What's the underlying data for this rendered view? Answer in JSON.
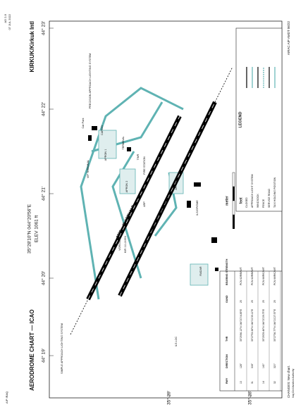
{
  "header": {
    "left": "AIP IRAQ",
    "right_1": "AD 2-9",
    "right_2": "07 JUL 2022"
  },
  "title": "AERODROME CHART — ICAO",
  "coords": "35°28'10\"N 044°20'56\"E",
  "elevation": "ELEV 1061 ft",
  "aerodrome": "KIRKUK/Kirkuk Intl",
  "longitudes": [
    "44° 19'",
    "44° 20'",
    "44° 21'",
    "44° 22'",
    "44° 23'"
  ],
  "latitudes": [
    "35° 29'",
    "35° 28'"
  ],
  "runways": [
    "2298 x 45 ASPHALT",
    "2998 x 45 CONCRETE"
  ],
  "labels": [
    "APRON 1",
    "APRON 2",
    "APRON",
    "VIP TERMINAL",
    "TERMINAL",
    "Car Park",
    "CARGO",
    "FIRE STATION",
    "TWR",
    "RADAR",
    "ARP",
    "VOR/DME",
    "KIR 111.2/49X",
    "ILS/GP/DME",
    "ILS LOC",
    "SIMPLE APPROACH LIGHTING SYSTEM",
    "PRECISION APPROACH LIGHTING SYSTEM"
  ],
  "table": {
    "headers": [
      "RWY",
      "DIRECTION",
      "THR",
      "GUND",
      "BEARING STRENGTH"
    ],
    "rows": [
      [
        "13",
        "128°",
        "35°29'46.12\"N 044°20'04.89\"E",
        "25",
        "PCN 62/R/B/W/T"
      ],
      [
        "31",
        "308°",
        "35°27'53.38\"N 044°21'35.12\"E",
        "25",
        "PCN 62/R/B/W/T"
      ],
      [
        "14",
        "140°",
        "35°29'29.46\"N 044°20'29.75\"E",
        "25",
        "PCN 66/R/C/W/T"
      ],
      [
        "32",
        "320°",
        "35°27'36.77\"N 044°21'27.57\"E",
        "25",
        "PCN 66/R/C/W/T"
      ]
    ]
  },
  "legend": {
    "title": "LEGEND",
    "items": [
      "CLOSED",
      "APPROACH LIGHT SYSTEM",
      "WINDSOCK",
      "FENCE",
      "SERVICE ROAD",
      "TAXI HOLDING POSITION"
    ]
  },
  "scale": {
    "units": [
      "meter",
      "feet"
    ]
  },
  "footer": {
    "changes": "CHANGES: New chart.",
    "authority": "Iraq Civil Aviation Authority",
    "amdt": "AIRAC AIP AMDT 06/22"
  }
}
